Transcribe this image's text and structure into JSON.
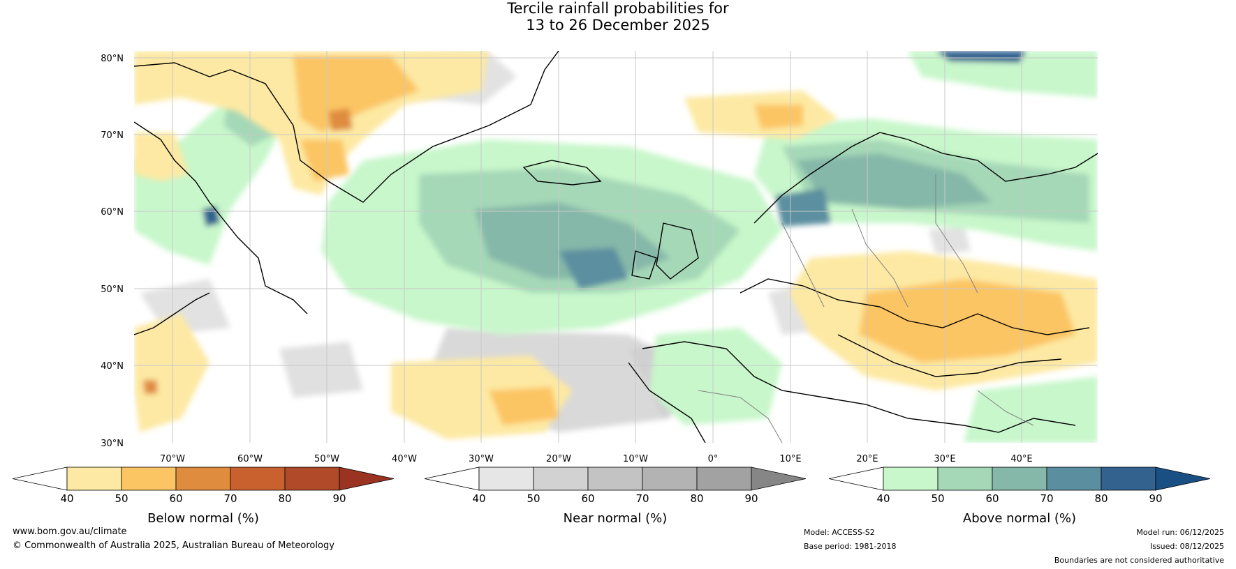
{
  "title": {
    "line1": "Tercile rainfall probabilities for",
    "line2": "13 to 26 December 2025"
  },
  "map": {
    "lat_labels": [
      "80°N",
      "70°N",
      "60°N",
      "50°N",
      "40°N",
      "30°N"
    ],
    "lon_labels": [
      "70°W",
      "60°W",
      "50°W",
      "40°W",
      "30°W",
      "20°W",
      "10°W",
      "0°",
      "10°E",
      "20°E",
      "30°E",
      "40°E"
    ]
  },
  "legends": [
    {
      "label": "Below normal (%)",
      "ticks": [
        "40",
        "50",
        "60",
        "70",
        "80",
        "90"
      ],
      "colors": [
        "#ffffff",
        "#fde9a3",
        "#fcc563",
        "#df8c3f",
        "#c8612e",
        "#b04a28",
        "#9a3322"
      ]
    },
    {
      "label": "Near normal (%)",
      "ticks": [
        "40",
        "50",
        "60",
        "70",
        "80",
        "90"
      ],
      "colors": [
        "#ffffff",
        "#e6e6e6",
        "#d2d2d2",
        "#c3c3c3",
        "#b3b3b3",
        "#a2a2a2",
        "#868686"
      ]
    },
    {
      "label": "Above normal (%)",
      "ticks": [
        "40",
        "50",
        "60",
        "70",
        "80",
        "90"
      ],
      "colors": [
        "#ffffff",
        "#c8f7cb",
        "#a5d8b7",
        "#86b8a9",
        "#5b8fa0",
        "#33628f",
        "#1a4f84"
      ]
    }
  ],
  "footer": {
    "website": "www.bom.gov.au/climate",
    "copyright": "© Commonwealth of Australia 2025, Australian Bureau of Meteorology",
    "model": "Model: ACCESS-S2",
    "base_period": "Base period: 1981-2018",
    "model_run": "Model run: 06/12/2025",
    "issued": "Issued: 08/12/2025",
    "disclaimer": "Boundaries are not considered authoritative"
  }
}
